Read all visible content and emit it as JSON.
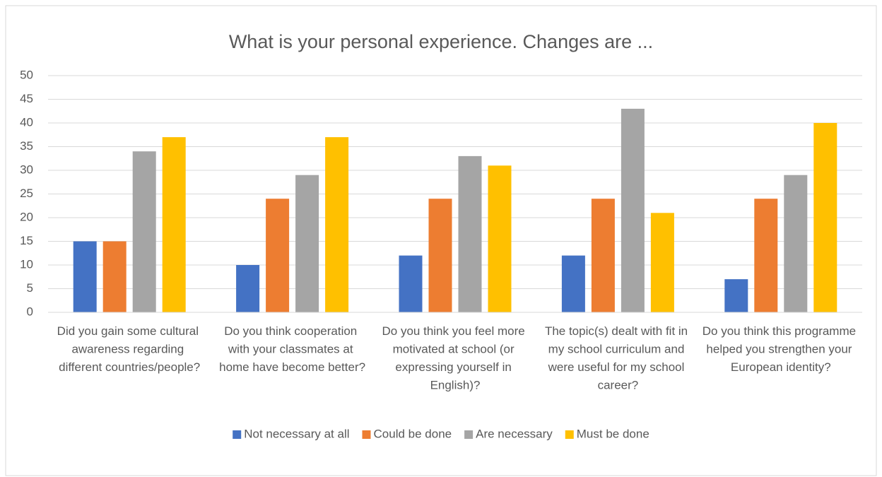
{
  "chart_data": {
    "type": "bar",
    "title": "What is your personal experience. Changes are ...",
    "categories": [
      "Did you gain some cultural awareness regarding different countries/people?",
      "Do you think cooperation with your classmates at home have become better?",
      "Do you think you feel more motivated at school (or expressing yourself in English)?",
      "The topic(s) dealt with fit in my school curriculum and were useful for my school career?",
      "Do you think this programme helped you strengthen your European identity?"
    ],
    "series": [
      {
        "name": "Not necessary at all",
        "color": "#4472c4",
        "values": [
          15,
          10,
          12,
          12,
          7
        ]
      },
      {
        "name": "Could be done",
        "color": "#ed7d31",
        "values": [
          15,
          24,
          24,
          24,
          24
        ]
      },
      {
        "name": "Are necessary",
        "color": "#a5a5a5",
        "values": [
          34,
          29,
          33,
          43,
          29
        ]
      },
      {
        "name": "Must be done",
        "color": "#ffc000",
        "values": [
          37,
          37,
          31,
          21,
          40
        ]
      }
    ],
    "ylim": [
      0,
      50
    ],
    "yticks": [
      0,
      5,
      10,
      15,
      20,
      25,
      30,
      35,
      40,
      45,
      50
    ],
    "grid": true,
    "legend": "bottom"
  }
}
